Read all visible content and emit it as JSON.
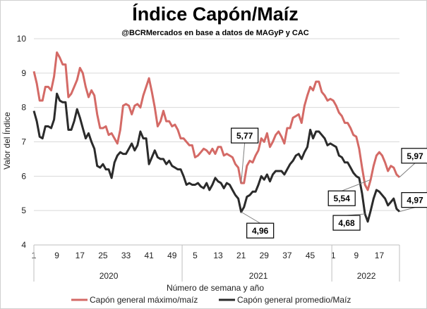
{
  "chart_data": {
    "type": "line",
    "title": "Índice Capón/Maíz",
    "subtitle": "@BCRMercados en base a datos de MAGyP y CAC",
    "xlabel": "Número de semana y año",
    "ylabel": "Valor del Índice",
    "ylim": [
      4,
      10
    ],
    "y_ticks": [
      "4",
      "5",
      "6",
      "7",
      "8",
      "9",
      "10"
    ],
    "x_tick_labels": [
      "1",
      "9",
      "17",
      "25",
      "33",
      "41",
      "49",
      "5",
      "13",
      "21",
      "29",
      "37",
      "45",
      "1",
      "9",
      "17"
    ],
    "years": [
      "2020",
      "2021",
      "2022"
    ],
    "legend_position": "bottom",
    "series": [
      {
        "name": "Capón general máximo/maíz",
        "color": "#d46a66",
        "values": [
          9.05,
          8.7,
          8.2,
          8.2,
          8.6,
          8.6,
          8.5,
          8.9,
          9.6,
          9.45,
          9.25,
          9.25,
          8.3,
          8.4,
          8.6,
          8.8,
          9.15,
          9.0,
          8.6,
          8.3,
          8.5,
          8.35,
          7.8,
          7.4,
          7.4,
          7.45,
          7.2,
          7.25,
          7.1,
          6.95,
          7.35,
          8.05,
          8.1,
          8.05,
          7.8,
          8.05,
          8.1,
          8.0,
          8.35,
          8.6,
          8.85,
          8.45,
          8.0,
          7.45,
          7.6,
          7.9,
          7.6,
          7.6,
          7.45,
          7.5,
          7.35,
          7.1,
          7.1,
          7.0,
          6.9,
          6.9,
          6.55,
          6.6,
          6.7,
          6.8,
          6.75,
          6.65,
          6.8,
          6.65,
          6.85,
          6.85,
          6.6,
          6.65,
          6.6,
          6.55,
          6.35,
          6.25,
          5.8,
          5.8,
          6.3,
          6.45,
          6.4,
          6.6,
          6.75,
          7.1,
          7.0,
          7.25,
          6.85,
          7.0,
          7.2,
          7.3,
          7.15,
          6.95,
          7.4,
          7.4,
          7.7,
          7.75,
          7.8,
          7.55,
          8.05,
          8.35,
          8.6,
          8.5,
          8.75,
          8.75,
          8.45,
          8.35,
          8.2,
          8.25,
          8.2,
          8.05,
          7.85,
          7.75,
          7.55,
          7.55,
          7.4,
          7.2,
          7.15,
          6.8,
          6.25,
          5.75,
          5.6,
          5.9,
          6.3,
          6.6,
          6.7,
          6.6,
          6.4,
          6.15,
          6.3,
          6.25,
          6.05,
          5.97
        ]
      },
      {
        "name": "Capón general promedio/Maíz",
        "color": "#2b2b2b",
        "values": [
          7.9,
          7.6,
          7.15,
          7.1,
          7.45,
          7.45,
          7.4,
          7.65,
          8.4,
          8.2,
          8.15,
          8.15,
          7.35,
          7.35,
          7.6,
          7.95,
          7.7,
          7.4,
          7.1,
          7.25,
          7.0,
          6.8,
          6.3,
          6.25,
          6.35,
          6.2,
          6.2,
          5.95,
          6.4,
          6.6,
          6.7,
          6.65,
          6.65,
          6.8,
          6.95,
          6.75,
          6.9,
          7.3,
          7.1,
          7.1,
          6.35,
          6.55,
          6.75,
          6.55,
          6.5,
          6.5,
          6.35,
          6.45,
          6.3,
          6.25,
          6.2,
          6.2,
          6.0,
          5.75,
          5.8,
          5.75,
          5.75,
          5.8,
          5.7,
          5.65,
          5.8,
          5.6,
          5.75,
          5.95,
          5.85,
          5.8,
          5.65,
          5.8,
          5.75,
          5.6,
          5.45,
          5.35,
          4.96,
          5.1,
          5.4,
          5.45,
          5.55,
          5.55,
          5.75,
          6.0,
          5.9,
          6.05,
          5.85,
          6.05,
          6.15,
          6.15,
          6.15,
          6.05,
          6.2,
          6.35,
          6.45,
          6.6,
          6.65,
          6.5,
          6.7,
          6.85,
          7.35,
          7.1,
          7.3,
          7.3,
          7.2,
          7.1,
          6.9,
          6.95,
          6.9,
          6.85,
          6.6,
          6.55,
          6.4,
          6.4,
          6.25,
          6.1,
          6.0,
          5.95,
          5.5,
          4.9,
          4.68,
          5.0,
          5.35,
          5.6,
          5.55,
          5.45,
          5.35,
          5.15,
          5.25,
          5.35,
          5.05,
          4.97
        ]
      }
    ],
    "annotations": [
      {
        "label": "5,77",
        "series": 0,
        "index": 72
      },
      {
        "label": "4,96",
        "series": 1,
        "index": 72
      },
      {
        "label": "5,54",
        "series": 0,
        "index": 117
      },
      {
        "label": "4,68",
        "series": 1,
        "index": 115
      },
      {
        "label": "5,97",
        "series": 0,
        "index": 127
      },
      {
        "label": "4,97",
        "series": 1,
        "index": 127
      }
    ],
    "grid": true
  }
}
